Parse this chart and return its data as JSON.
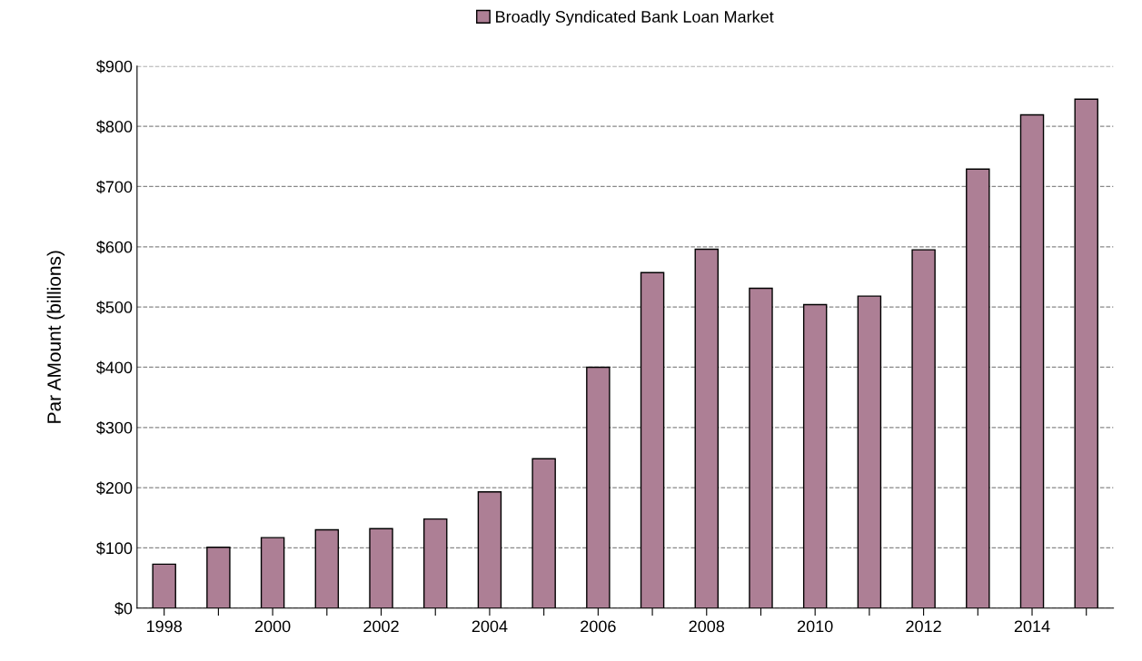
{
  "chart_data": {
    "type": "bar",
    "ylabel": "Par AMount (billions)",
    "categories": [
      "1998",
      null,
      "2000",
      null,
      "2002",
      null,
      "2004",
      null,
      "2006",
      null,
      "2008",
      null,
      "2010",
      null,
      "2012",
      null,
      "2014",
      null
    ],
    "series": [
      {
        "name": "Broadly Syndicated Bank Loan Market",
        "color": "#ad7f95",
        "values": [
          73,
          101,
          117,
          130,
          132,
          148,
          193,
          248,
          400,
          557,
          596,
          531,
          504,
          518,
          595,
          729,
          819,
          845
        ]
      }
    ],
    "ylim": [
      0,
      900
    ],
    "yticks": [
      {
        "value": 0,
        "label": "$0"
      },
      {
        "value": 100,
        "label": "$100"
      },
      {
        "value": 200,
        "label": "$200"
      },
      {
        "value": 300,
        "label": "$300"
      },
      {
        "value": 400,
        "label": "$400"
      },
      {
        "value": 500,
        "label": "$500"
      },
      {
        "value": 600,
        "label": "$600"
      },
      {
        "value": 700,
        "label": "$700"
      },
      {
        "value": 800,
        "label": "$800"
      },
      {
        "value": 900,
        "label": "$900"
      }
    ],
    "grid": "y",
    "legend": "top"
  }
}
